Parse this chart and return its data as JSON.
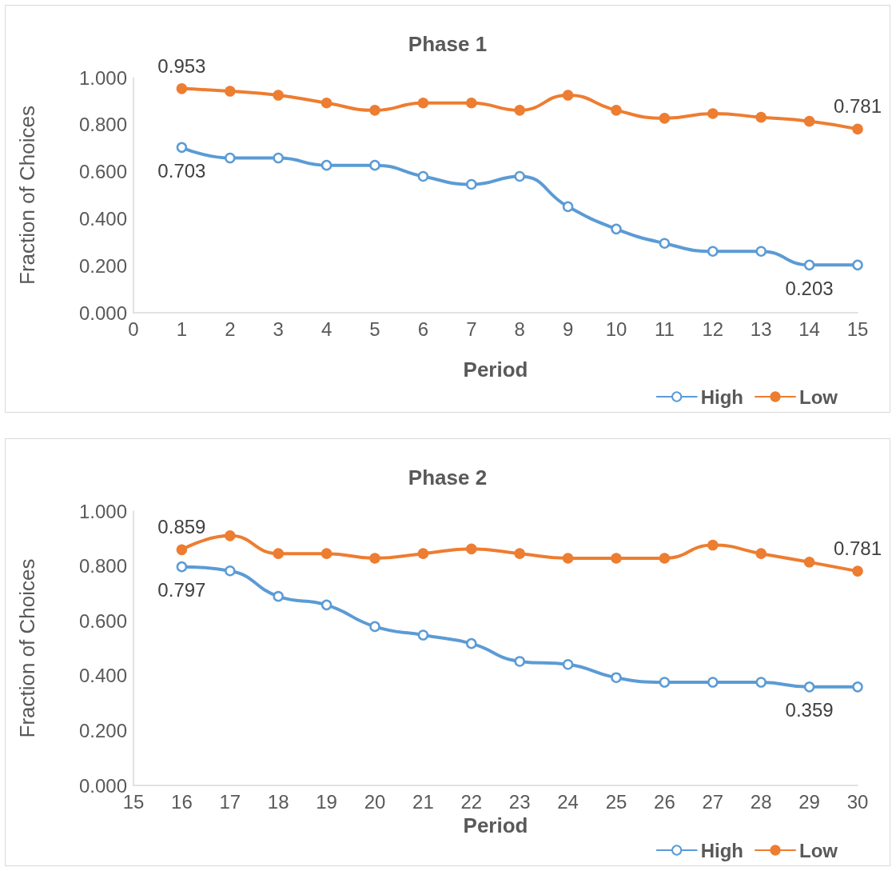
{
  "chart_data": [
    {
      "type": "line",
      "title": "Phase 1",
      "xlabel": "Period",
      "ylabel": "Fraction of Choices",
      "x": [
        1,
        2,
        3,
        4,
        5,
        6,
        7,
        8,
        9,
        10,
        11,
        12,
        13,
        14,
        15
      ],
      "series": [
        {
          "name": "High",
          "color": "#5b9bd5",
          "marker": "circle",
          "values": [
            0.703,
            0.658,
            0.658,
            0.627,
            0.627,
            0.58,
            0.546,
            0.58,
            0.451,
            0.356,
            0.295,
            0.261,
            0.261,
            0.203,
            0.203
          ],
          "value_labels": [
            "0.703",
            null,
            null,
            null,
            null,
            null,
            null,
            null,
            null,
            null,
            null,
            null,
            null,
            "0.203",
            null
          ]
        },
        {
          "name": "Low",
          "color": "#ed7d31",
          "marker": "circle",
          "values": [
            0.953,
            0.942,
            0.925,
            0.892,
            0.861,
            0.892,
            0.892,
            0.861,
            0.925,
            0.861,
            0.827,
            0.847,
            0.831,
            0.814,
            0.781
          ],
          "value_labels": [
            "0.953",
            null,
            null,
            null,
            null,
            null,
            null,
            null,
            null,
            null,
            null,
            null,
            null,
            null,
            "0.781"
          ]
        }
      ],
      "xlim": [
        0,
        15
      ],
      "xticks": [
        0,
        1,
        2,
        3,
        4,
        5,
        6,
        7,
        8,
        9,
        10,
        11,
        12,
        13,
        14,
        15
      ],
      "ylim": [
        0,
        1
      ],
      "yticks": [
        {
          "value": 0,
          "label": "0.000"
        },
        {
          "value": 0.2,
          "label": "0.200"
        },
        {
          "value": 0.4,
          "label": "0.400"
        },
        {
          "value": 0.6,
          "label": "0.600"
        },
        {
          "value": 0.8,
          "label": "0.800"
        },
        {
          "value": 1,
          "label": "1.000"
        }
      ],
      "grid": false,
      "legend": "bottom right",
      "line_style": "solid"
    },
    {
      "type": "line",
      "title": "Phase 2",
      "xlabel": "Period",
      "ylabel": "Fraction of Choices",
      "x": [
        16,
        17,
        18,
        19,
        20,
        21,
        22,
        23,
        24,
        25,
        26,
        27,
        28,
        29,
        30
      ],
      "series": [
        {
          "name": "High",
          "color": "#5b9bd5",
          "marker": "circle",
          "values": [
            0.797,
            0.782,
            0.689,
            0.658,
            0.579,
            0.548,
            0.517,
            0.452,
            0.441,
            0.393,
            0.376,
            0.376,
            0.376,
            0.359,
            0.359
          ],
          "value_labels": [
            "0.797",
            null,
            null,
            null,
            null,
            null,
            null,
            null,
            null,
            null,
            null,
            null,
            null,
            "0.359",
            null
          ]
        },
        {
          "name": "Low",
          "color": "#ed7d31",
          "marker": "circle",
          "values": [
            0.859,
            0.91,
            0.845,
            0.845,
            0.828,
            0.845,
            0.862,
            0.845,
            0.828,
            0.828,
            0.828,
            0.876,
            0.845,
            0.814,
            0.781
          ],
          "value_labels": [
            "0.859",
            null,
            null,
            null,
            null,
            null,
            null,
            null,
            null,
            null,
            null,
            null,
            null,
            null,
            "0.781"
          ]
        }
      ],
      "xlim": [
        15,
        30
      ],
      "xticks": [
        15,
        16,
        17,
        18,
        19,
        20,
        21,
        22,
        23,
        24,
        25,
        26,
        27,
        28,
        29,
        30
      ],
      "ylim": [
        0,
        1
      ],
      "yticks": [
        {
          "value": 0,
          "label": "0.000"
        },
        {
          "value": 0.2,
          "label": "0.200"
        },
        {
          "value": 0.4,
          "label": "0.400"
        },
        {
          "value": 0.6,
          "label": "0.600"
        },
        {
          "value": 0.8,
          "label": "0.800"
        },
        {
          "value": 1,
          "label": "1.000"
        }
      ],
      "grid": false,
      "legend": "bottom right",
      "line_style": "solid"
    }
  ]
}
